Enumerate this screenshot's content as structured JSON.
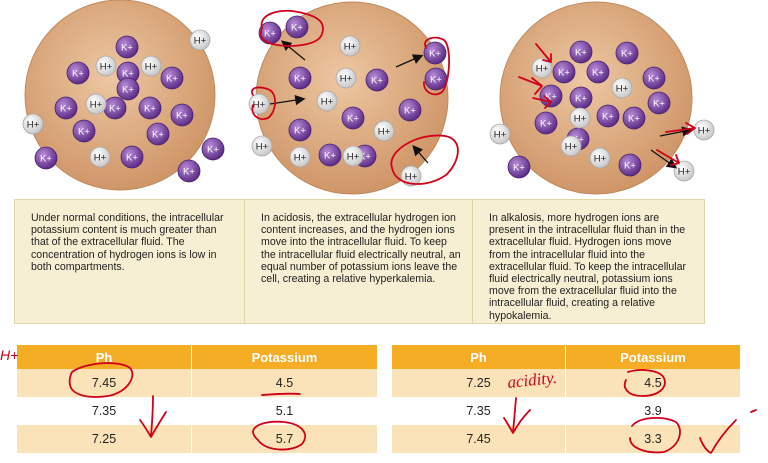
{
  "ions": {
    "k": "K+",
    "h": "H+"
  },
  "panels": [
    {
      "text": "Under normal conditions, the intracellular potassium content is much greater than that of the extracellular fluid. The concentration of hydrogen ions is low in both compartments."
    },
    {
      "text": "In acidosis, the extracellular hydrogen ion content increases, and the hydrogen ions move into the intracellular fluid. To keep the intracellular fluid electrically neutral, an equal number of potassium ions leave the cell, creating a relative hyperkalemia."
    },
    {
      "text": "In alkalosis, more hydrogen ions are present in the intracellular fluid than in the extracellular fluid. Hydrogen ions move from the intracellular fluid into the extracellular fluid. To keep the intracellular fluid electrically neutral, potassium ions move from the extracellular fluid into the intracellular fluid, creating a relative hypokalemia."
    }
  ],
  "tables": [
    {
      "headers": [
        "Ph",
        "Potassium"
      ],
      "rows": [
        [
          "7.45",
          "4.5"
        ],
        [
          "7.35",
          "5.1"
        ],
        [
          "7.25",
          "5.7"
        ]
      ]
    },
    {
      "headers": [
        "Ph",
        "Potassium"
      ],
      "rows": [
        [
          "7.25",
          "4.5"
        ],
        [
          "7.35",
          "3.9"
        ],
        [
          "7.45",
          "3.3"
        ]
      ]
    }
  ],
  "annotations": {
    "left_note": "H+",
    "acidity_note": "acidity."
  },
  "colors": {
    "potassium": "#7a47a6",
    "hydrogen": "#f1f1f1",
    "cell": "#d8a379",
    "header": "#f4ad24",
    "row_tint": "#fbe3b9",
    "panel": "#f7efd3",
    "ink": "#d0021b"
  }
}
